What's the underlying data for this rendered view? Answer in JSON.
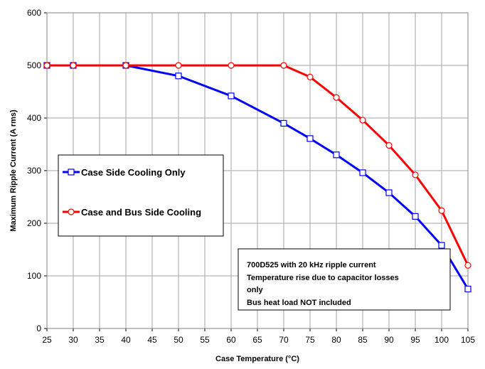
{
  "chart_data": {
    "type": "line",
    "title": "",
    "xlabel": "Case Temperature (°C)",
    "ylabel": "Maximum Ripple Current (A rms)",
    "x_ticks": [
      25,
      30,
      35,
      40,
      45,
      50,
      55,
      60,
      65,
      70,
      75,
      80,
      85,
      90,
      95,
      100,
      105
    ],
    "y_ticks": [
      0,
      100,
      200,
      300,
      400,
      500,
      600
    ],
    "xlim": [
      25,
      105
    ],
    "ylim": [
      0,
      600
    ],
    "grid": true,
    "legend_position": "left",
    "series": [
      {
        "name": "Case Side Cooling Only",
        "color": "#0000ff",
        "marker": "square",
        "x": [
          25,
          30,
          40,
          50,
          60,
          70,
          75,
          80,
          85,
          90,
          95,
          100,
          105
        ],
        "y": [
          500,
          500,
          500,
          480,
          442,
          390,
          361,
          330,
          296,
          258,
          213,
          158,
          75
        ]
      },
      {
        "name": "Case and Bus Side Cooling",
        "color": "#ff0000",
        "marker": "circle",
        "x": [
          25,
          30,
          40,
          50,
          60,
          70,
          75,
          80,
          85,
          90,
          95,
          100,
          105
        ],
        "y": [
          500,
          500,
          500,
          500,
          500,
          500,
          478,
          439,
          396,
          348,
          292,
          224,
          120
        ]
      }
    ],
    "annotation": [
      "700D525 with 20 kHz ripple current",
      "Temperature rise due to capacitor losses",
      "only",
      "Bus heat load NOT included"
    ]
  }
}
